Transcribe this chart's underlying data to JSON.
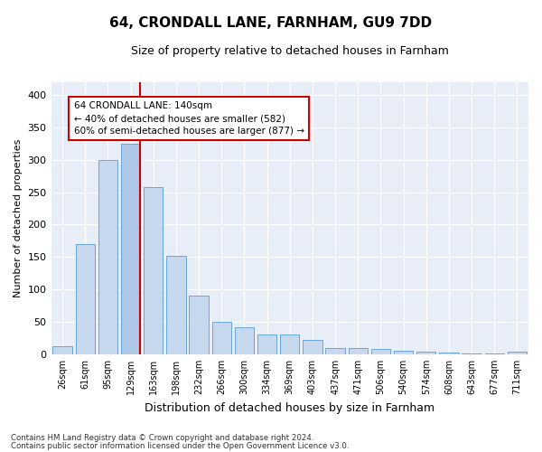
{
  "title1": "64, CRONDALL LANE, FARNHAM, GU9 7DD",
  "title2": "Size of property relative to detached houses in Farnham",
  "xlabel": "Distribution of detached houses by size in Farnham",
  "ylabel": "Number of detached properties",
  "categories": [
    "26sqm",
    "61sqm",
    "95sqm",
    "129sqm",
    "163sqm",
    "198sqm",
    "232sqm",
    "266sqm",
    "300sqm",
    "334sqm",
    "369sqm",
    "403sqm",
    "437sqm",
    "471sqm",
    "506sqm",
    "540sqm",
    "574sqm",
    "608sqm",
    "643sqm",
    "677sqm",
    "711sqm"
  ],
  "values": [
    12,
    170,
    300,
    325,
    258,
    152,
    90,
    50,
    42,
    30,
    30,
    22,
    10,
    10,
    8,
    5,
    4,
    2,
    1,
    1,
    4
  ],
  "highlight_index": 3,
  "highlight_color": "#adc8e6",
  "bar_color": "#c5d8ed",
  "bar_edge_color": "#5b9bd5",
  "highlight_line_color": "#cc0000",
  "annotation_text": "64 CRONDALL LANE: 140sqm\n← 40% of detached houses are smaller (582)\n60% of semi-detached houses are larger (877) →",
  "annotation_box_color": "#ffffff",
  "annotation_box_edge": "#cc0000",
  "background_color": "#e8eef7",
  "ylim": [
    0,
    420
  ],
  "yticks": [
    0,
    50,
    100,
    150,
    200,
    250,
    300,
    350,
    400
  ],
  "footer1": "Contains HM Land Registry data © Crown copyright and database right 2024.",
  "footer2": "Contains public sector information licensed under the Open Government Licence v3.0."
}
